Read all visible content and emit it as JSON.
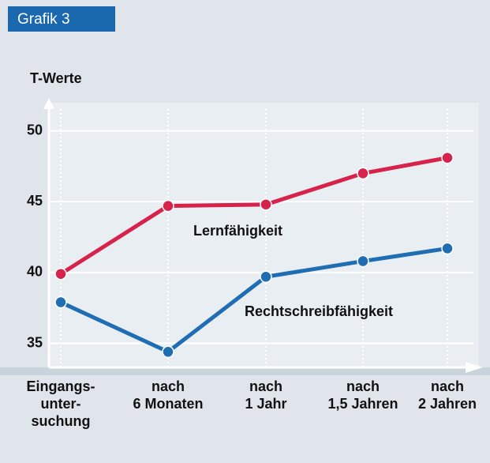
{
  "chart_data": {
    "type": "line",
    "title": "Grafik 3",
    "y_label": "T-Werte",
    "categories": [
      "Eingangs-\nunter-\nsuchung",
      "nach\n6 Monaten",
      "nach\n1 Jahr",
      "nach\n1,5 Jahren",
      "nach\n2 Jahren"
    ],
    "series": [
      {
        "name": "Lernfähigkeit",
        "color": "#d7224b",
        "values": [
          39.9,
          44.7,
          44.8,
          47.0,
          48.1
        ]
      },
      {
        "name": "Rechtschreibfähigkeit",
        "color": "#1f6db3",
        "values": [
          37.9,
          34.4,
          39.7,
          40.8,
          41.7
        ]
      }
    ],
    "ylim": [
      33.3,
      52.1
    ],
    "yticks": [
      35,
      40,
      45,
      50
    ],
    "grid": true
  }
}
